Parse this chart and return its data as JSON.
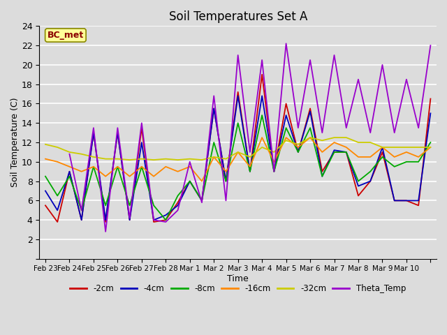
{
  "title": "Soil Temperatures Set A",
  "xlabel": "Time",
  "ylabel": "Soil Temperature (C)",
  "annotation": "BC_met",
  "ylim": [
    0,
    24
  ],
  "yticks": [
    0,
    2,
    4,
    6,
    8,
    10,
    12,
    14,
    16,
    18,
    20,
    22,
    24
  ],
  "background_color": "#dcdcdc",
  "plot_bg": "#dcdcdc",
  "grid_color": "#ffffff",
  "series_order": [
    "-2cm",
    "-4cm",
    "-8cm",
    "-16cm",
    "-32cm",
    "Theta_Temp"
  ],
  "series": {
    "-2cm": {
      "color": "#cc0000",
      "lw": 1.3
    },
    "-4cm": {
      "color": "#0000bb",
      "lw": 1.3
    },
    "-8cm": {
      "color": "#00aa00",
      "lw": 1.3
    },
    "-16cm": {
      "color": "#ff8800",
      "lw": 1.3
    },
    "-32cm": {
      "color": "#cccc00",
      "lw": 1.3
    },
    "Theta_Temp": {
      "color": "#9900cc",
      "lw": 1.3
    }
  },
  "n_points": 33,
  "x_tick_positions": [
    0,
    2,
    4,
    6,
    8,
    10,
    12,
    14,
    16,
    18,
    20,
    22,
    24,
    26,
    28,
    30,
    32
  ],
  "x_tick_labels": [
    "Feb 23",
    "Feb 24",
    "Feb 25",
    "Feb 26",
    "Feb 27",
    "Feb 28",
    "Mar 1",
    "Mar 2",
    "Mar 3",
    "Mar 4",
    "Mar 5",
    "Mar 6",
    "Mar 7",
    "Mar 8",
    "Mar 9",
    "Mar 10",
    ""
  ],
  "data": {
    "-2cm": [
      5.5,
      3.8,
      9.0,
      4.0,
      13.0,
      3.8,
      13.0,
      4.0,
      13.5,
      3.8,
      4.0,
      5.8,
      8.0,
      6.0,
      15.5,
      8.0,
      17.2,
      9.0,
      19.0,
      9.0,
      16.0,
      11.0,
      15.5,
      9.0,
      11.0,
      11.0,
      6.5,
      8.0,
      11.0,
      6.0,
      6.0,
      5.5,
      16.5
    ],
    "-4cm": [
      7.0,
      5.0,
      9.0,
      4.0,
      13.0,
      4.0,
      13.0,
      4.0,
      12.0,
      4.0,
      4.5,
      5.5,
      8.0,
      6.0,
      15.5,
      8.0,
      16.8,
      9.0,
      16.8,
      9.0,
      14.8,
      11.0,
      15.2,
      8.5,
      11.2,
      11.0,
      7.5,
      8.0,
      11.5,
      6.0,
      6.0,
      6.0,
      15.0
    ],
    "-8cm": [
      8.5,
      6.5,
      8.5,
      5.0,
      9.5,
      5.5,
      9.5,
      5.5,
      9.5,
      5.5,
      4.0,
      6.5,
      8.0,
      6.0,
      12.0,
      8.0,
      14.0,
      9.0,
      14.8,
      9.0,
      13.5,
      11.0,
      13.5,
      8.5,
      11.0,
      11.0,
      8.0,
      9.0,
      10.5,
      9.5,
      10.0,
      10.0,
      12.0
    ],
    "-16cm": [
      10.3,
      10.0,
      9.5,
      9.0,
      9.5,
      8.5,
      9.5,
      8.5,
      9.5,
      8.5,
      9.5,
      9.0,
      9.5,
      8.0,
      10.5,
      9.0,
      11.0,
      9.5,
      12.5,
      10.0,
      12.5,
      11.5,
      12.5,
      11.0,
      12.0,
      11.5,
      10.5,
      10.5,
      11.5,
      10.5,
      11.0,
      10.5,
      11.5
    ],
    "-32cm": [
      11.8,
      11.5,
      11.0,
      10.8,
      10.5,
      10.3,
      10.3,
      10.2,
      10.3,
      10.2,
      10.3,
      10.2,
      10.3,
      10.2,
      10.5,
      10.3,
      11.0,
      10.5,
      11.5,
      11.0,
      12.2,
      11.8,
      12.5,
      12.2,
      12.5,
      12.5,
      12.0,
      12.0,
      11.5,
      11.5,
      11.5,
      11.5,
      11.5
    ],
    "Theta_Temp": [
      null,
      null,
      10.8,
      5.0,
      13.5,
      2.8,
      13.5,
      4.2,
      14.0,
      4.0,
      3.8,
      5.0,
      10.0,
      5.8,
      16.8,
      6.0,
      21.0,
      11.0,
      20.5,
      9.0,
      22.2,
      13.5,
      20.5,
      13.0,
      21.0,
      13.5,
      18.5,
      13.0,
      20.0,
      13.0,
      18.5,
      13.5,
      22.0
    ]
  }
}
